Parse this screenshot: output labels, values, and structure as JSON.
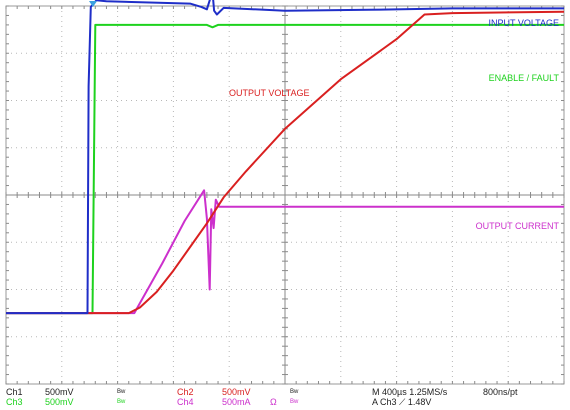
{
  "chart_data": {
    "type": "line",
    "title": "",
    "xlabel": "",
    "ylabel": "",
    "grid": true,
    "x_divisions": 10,
    "y_divisions": 8,
    "xlim": [
      0,
      10
    ],
    "ylim": [
      0,
      8
    ],
    "series": [
      {
        "name": "INPUT VOLTAGE",
        "color": "#1f2ec8",
        "points": [
          [
            0,
            1.5
          ],
          [
            1.46,
            1.5
          ],
          [
            1.48,
            6.3
          ],
          [
            1.52,
            7.98
          ],
          [
            1.62,
            8.12
          ],
          [
            1.8,
            8.1
          ],
          [
            3.3,
            8.05
          ],
          [
            3.5,
            7.98
          ],
          [
            3.6,
            7.93
          ],
          [
            3.65,
            8.12
          ],
          [
            3.7,
            8.3
          ],
          [
            3.73,
            7.9
          ],
          [
            3.78,
            7.82
          ],
          [
            3.9,
            7.96
          ],
          [
            5.0,
            7.9
          ],
          [
            6.5,
            7.92
          ],
          [
            8.0,
            7.95
          ],
          [
            10.0,
            7.95
          ]
        ]
      },
      {
        "name": "ENABLE / FAULT",
        "color": "#1ed21e",
        "points": [
          [
            0,
            1.5
          ],
          [
            1.55,
            1.5
          ],
          [
            1.6,
            7.6
          ],
          [
            3.6,
            7.6
          ],
          [
            3.7,
            7.55
          ],
          [
            3.8,
            7.6
          ],
          [
            10.0,
            7.6
          ]
        ]
      },
      {
        "name": "OUTPUT VOLTAGE",
        "color": "#d92020",
        "points": [
          [
            0,
            1.5
          ],
          [
            1.55,
            1.5
          ],
          [
            2.2,
            1.5
          ],
          [
            2.4,
            1.62
          ],
          [
            2.7,
            1.95
          ],
          [
            3.0,
            2.4
          ],
          [
            3.3,
            2.9
          ],
          [
            3.6,
            3.4
          ],
          [
            3.9,
            3.95
          ],
          [
            4.3,
            4.5
          ],
          [
            5.0,
            5.4
          ],
          [
            6.0,
            6.45
          ],
          [
            7.0,
            7.3
          ],
          [
            7.5,
            7.82
          ],
          [
            8.0,
            7.85
          ],
          [
            10.0,
            7.88
          ]
        ]
      },
      {
        "name": "OUTPUT CURRENT",
        "color": "#cc30cc",
        "points": [
          [
            0,
            1.5
          ],
          [
            2.3,
            1.5
          ],
          [
            2.8,
            2.55
          ],
          [
            3.2,
            3.45
          ],
          [
            3.55,
            4.1
          ],
          [
            3.6,
            3.5
          ],
          [
            3.65,
            2.0
          ],
          [
            3.68,
            3.7
          ],
          [
            3.72,
            3.3
          ],
          [
            3.76,
            3.9
          ],
          [
            3.82,
            3.75
          ],
          [
            4.0,
            3.75
          ],
          [
            10.0,
            3.75
          ]
        ]
      }
    ],
    "trace_labels": [
      {
        "text": "INPUT VOLTAGE",
        "color": "#1f2ec8"
      },
      {
        "text": "ENABLE / FAULT",
        "color": "#1ed21e"
      },
      {
        "text": "OUTPUT VOLTAGE",
        "color": "#d92020"
      },
      {
        "text": "OUTPUT CURRENT",
        "color": "#cc30cc"
      }
    ]
  },
  "readout": {
    "row1": {
      "ch1": "Ch1",
      "ch1_scale": "500mV",
      "ch1_bw": "Bw",
      "ch2": "Ch2",
      "ch2_scale": "500mV",
      "ch2_bw": "Bw",
      "timebase": "M 400µs 1.25MS/s",
      "resolution": "800ns/pt"
    },
    "row2": {
      "ch3": "Ch3",
      "ch3_scale": "500mV",
      "ch3_bw": "Bw",
      "ch4": "Ch4",
      "ch4_scale": "500mA",
      "ch4_symbol": "Ω",
      "ch4_bw": "Bw",
      "trigger": "A  Ch3  ⟋  1.48V"
    },
    "colors": {
      "ch1": "#1f2ec8",
      "ch2": "#d92020",
      "ch3": "#1ed21e",
      "ch4": "#cc30cc",
      "text": "#222222"
    }
  }
}
